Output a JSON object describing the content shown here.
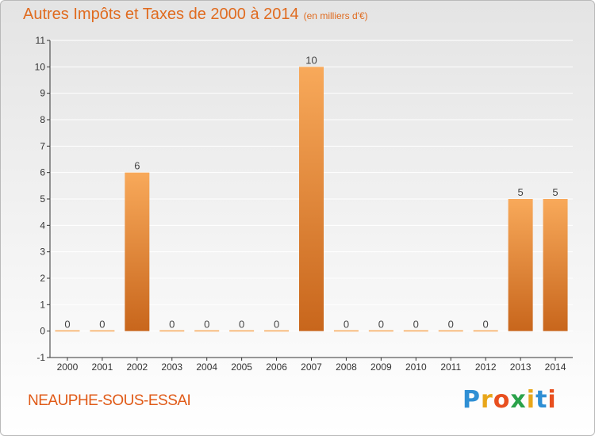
{
  "title": "Autres Impôts et Taxes de 2000 à 2014",
  "subtitle": "(en milliers d'€)",
  "commune": "NEAUPHE-SOUS-ESSAI",
  "logo": {
    "text": "Proxiti",
    "letters": [
      {
        "char": "P",
        "color": "#2f8fd4"
      },
      {
        "char": "r",
        "color": "#e8a619"
      },
      {
        "char": "o",
        "color": "#e84f1f"
      },
      {
        "char": "x",
        "color": "#2aa24a"
      },
      {
        "char": "i",
        "color": "#e8a619"
      },
      {
        "char": "t",
        "color": "#2f8fd4"
      },
      {
        "char": "i",
        "color": "#e84f1f"
      }
    ]
  },
  "colors": {
    "title": "#e06b1f",
    "bar_light": "#f8a95a",
    "bar_dark": "#c8661c",
    "axis": "#333333",
    "grid": "#ffffff"
  },
  "chart_data": {
    "type": "bar",
    "title": "Autres Impôts et Taxes de 2000 à 2014",
    "subtitle": "(en milliers d'€)",
    "categories": [
      "2000",
      "2001",
      "2002",
      "2003",
      "2004",
      "2005",
      "2006",
      "2007",
      "2008",
      "2009",
      "2010",
      "2011",
      "2012",
      "2013",
      "2014"
    ],
    "values": [
      0,
      0,
      6,
      0,
      0,
      0,
      0,
      10,
      0,
      0,
      0,
      0,
      0,
      5,
      5
    ],
    "ylim": [
      -1,
      11
    ],
    "y_ticks": [
      "-1",
      "0",
      "1",
      "2",
      "3",
      "4",
      "5",
      "6",
      "7",
      "8",
      "9",
      "10",
      "11"
    ],
    "grid": true,
    "data_labels": true
  }
}
